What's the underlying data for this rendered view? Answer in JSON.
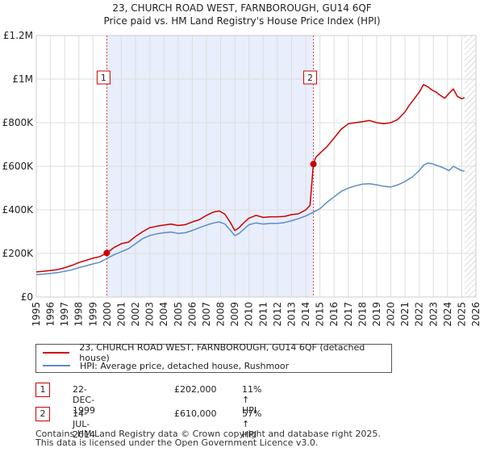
{
  "chart_data": {
    "type": "line",
    "title": "23, CHURCH ROAD WEST, FARNBOROUGH, GU14 6QF",
    "subtitle": "Price paid vs. HM Land Registry's House Price Index (HPI)",
    "xlim": [
      1995,
      2026
    ],
    "ylim": [
      0,
      1200000
    ],
    "x_ticks": [
      1995,
      1996,
      1997,
      1998,
      1999,
      2000,
      2001,
      2002,
      2003,
      2004,
      2005,
      2006,
      2007,
      2008,
      2009,
      2010,
      2011,
      2012,
      2013,
      2014,
      2015,
      2016,
      2017,
      2018,
      2019,
      2020,
      2021,
      2022,
      2023,
      2024,
      2025,
      2026
    ],
    "y_ticks": [
      {
        "value": 0,
        "label": "£0"
      },
      {
        "value": 200000,
        "label": "£200K"
      },
      {
        "value": 400000,
        "label": "£400K"
      },
      {
        "value": 600000,
        "label": "£600K"
      },
      {
        "value": 800000,
        "label": "£800K"
      },
      {
        "value": 1000000,
        "label": "£1M"
      },
      {
        "value": 1200000,
        "label": "£1.2M"
      }
    ],
    "grid": true,
    "shaded_period": [
      1999.97,
      2014.54
    ],
    "data_end": 2025.2,
    "series": [
      {
        "name": "23, CHURCH ROAD WEST, FARNBOROUGH, GU14 6QF (detached house)",
        "color": "#cc0000",
        "x": [
          1995,
          1995.5,
          1996,
          1996.5,
          1997,
          1997.5,
          1998,
          1998.5,
          1999,
          1999.5,
          1999.97,
          2000.5,
          2001,
          2001.5,
          2002,
          2002.5,
          2003,
          2003.5,
          2004,
          2004.5,
          2005,
          2005.5,
          2006,
          2006.5,
          2007,
          2007.5,
          2007.9,
          2008.3,
          2008.7,
          2009,
          2009.3,
          2009.7,
          2010,
          2010.5,
          2011,
          2011.5,
          2012,
          2012.5,
          2013,
          2013.5,
          2014,
          2014.3,
          2014.54,
          2014.7,
          2015,
          2015.5,
          2016,
          2016.5,
          2017,
          2017.5,
          2018,
          2018.5,
          2019,
          2019.5,
          2020,
          2020.5,
          2021,
          2021.3,
          2021.6,
          2022,
          2022.3,
          2022.6,
          2022.9,
          2023.2,
          2023.5,
          2023.8,
          2024.1,
          2024.4,
          2024.7,
          2025,
          2025.2
        ],
        "values": [
          115000,
          118000,
          122000,
          126000,
          135000,
          145000,
          158000,
          168000,
          178000,
          186000,
          202000,
          228000,
          245000,
          252000,
          278000,
          300000,
          318000,
          325000,
          330000,
          335000,
          328000,
          332000,
          345000,
          355000,
          375000,
          390000,
          395000,
          380000,
          340000,
          305000,
          318000,
          345000,
          362000,
          375000,
          365000,
          368000,
          368000,
          370000,
          378000,
          382000,
          400000,
          420000,
          610000,
          640000,
          660000,
          690000,
          730000,
          770000,
          795000,
          800000,
          805000,
          810000,
          800000,
          795000,
          800000,
          815000,
          850000,
          880000,
          905000,
          940000,
          975000,
          965000,
          950000,
          940000,
          925000,
          912000,
          935000,
          955000,
          920000,
          910000,
          915000
        ]
      },
      {
        "name": "HPI: Average price, detached house, Rushmoor",
        "color": "#5b8cc9",
        "x": [
          1995,
          1995.5,
          1996,
          1996.5,
          1997,
          1997.5,
          1998,
          1998.5,
          1999,
          1999.5,
          2000,
          2000.5,
          2001,
          2001.5,
          2002,
          2002.5,
          2003,
          2003.5,
          2004,
          2004.5,
          2005,
          2005.5,
          2006,
          2006.5,
          2007,
          2007.5,
          2007.9,
          2008.3,
          2008.7,
          2009,
          2009.3,
          2009.7,
          2010,
          2010.5,
          2011,
          2011.5,
          2012,
          2012.5,
          2013,
          2013.5,
          2014,
          2014.5,
          2015,
          2015.5,
          2016,
          2016.5,
          2017,
          2017.5,
          2018,
          2018.5,
          2019,
          2019.5,
          2020,
          2020.5,
          2021,
          2021.5,
          2022,
          2022.3,
          2022.6,
          2022.9,
          2023.2,
          2023.5,
          2023.8,
          2024.1,
          2024.4,
          2024.7,
          2025,
          2025.2
        ],
        "values": [
          103000,
          105000,
          108000,
          112000,
          118000,
          125000,
          135000,
          143000,
          152000,
          160000,
          178000,
          195000,
          208000,
          222000,
          245000,
          268000,
          282000,
          290000,
          295000,
          298000,
          292000,
          295000,
          305000,
          318000,
          330000,
          340000,
          345000,
          335000,
          305000,
          282000,
          292000,
          315000,
          332000,
          340000,
          335000,
          338000,
          338000,
          342000,
          350000,
          360000,
          372000,
          388000,
          405000,
          435000,
          460000,
          485000,
          500000,
          510000,
          518000,
          520000,
          515000,
          508000,
          505000,
          515000,
          530000,
          550000,
          580000,
          605000,
          615000,
          612000,
          605000,
          598000,
          590000,
          580000,
          600000,
          590000,
          580000,
          578000
        ]
      }
    ],
    "markers": [
      {
        "id": "1",
        "x": 1999.97,
        "value": 202000
      },
      {
        "id": "2",
        "x": 2014.54,
        "value": 610000
      }
    ],
    "legend_position": "bottom"
  },
  "legend": {
    "items": [
      {
        "label": "23, CHURCH ROAD WEST, FARNBOROUGH, GU14 6QF (detached house)",
        "color": "#cc0000"
      },
      {
        "label": "HPI: Average price, detached house, Rushmoor",
        "color": "#5b8cc9"
      }
    ]
  },
  "sales": [
    {
      "id": "1",
      "date": "22-DEC-1999",
      "price": "£202,000",
      "hpi": "11% ↑ HPI"
    },
    {
      "id": "2",
      "date": "14-JUL-2014",
      "price": "£610,000",
      "hpi": "57% ↑ HPI"
    }
  ],
  "footer": {
    "line1": "Contains HM Land Registry data © Crown copyright and database right 2025.",
    "line2": "This data is licensed under the Open Government Licence v3.0."
  }
}
